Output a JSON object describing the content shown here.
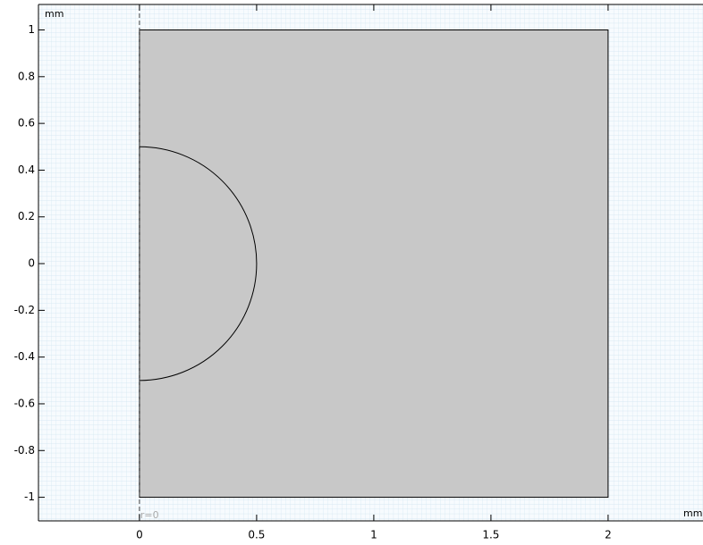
{
  "view": {
    "x_unit": "mm",
    "y_unit": "mm",
    "axis_label": "r=0",
    "xlim": [
      -0.431,
      2.405
    ],
    "ylim": [
      -1.101,
      1.109
    ],
    "xticks": [
      0,
      0.5,
      1,
      1.5,
      2
    ],
    "yticks": [
      -1,
      -0.8,
      -0.6,
      -0.4,
      -0.2,
      0,
      0.2,
      0.4,
      0.6,
      0.8,
      1
    ],
    "rectangle": {
      "x": [
        0,
        2
      ],
      "y": [
        -1,
        1
      ]
    },
    "circle": {
      "center": [
        0,
        0
      ],
      "radius": 0.5
    }
  }
}
